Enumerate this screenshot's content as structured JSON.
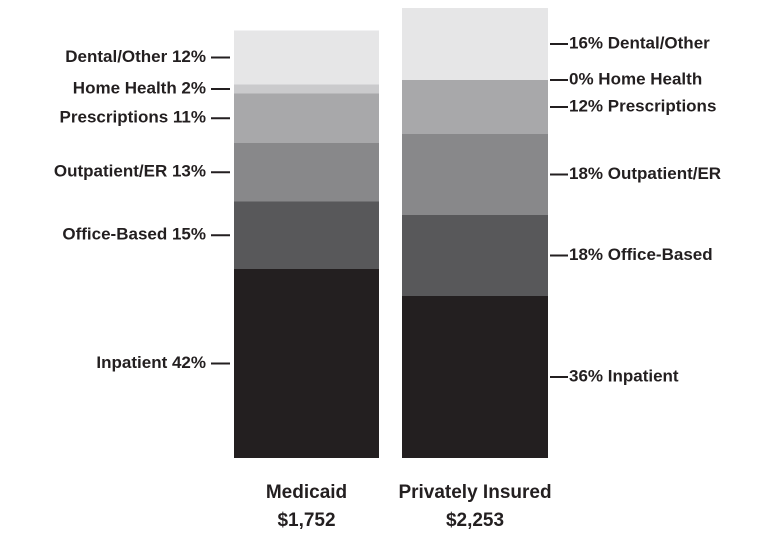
{
  "chart_data": {
    "type": "stacked-bar",
    "ylim": [
      0,
      100
    ],
    "bars": [
      {
        "category": "Medicaid",
        "total": "$1,752",
        "segments": [
          {
            "label": "Inpatient 42%",
            "value": 42,
            "color": "#231f20"
          },
          {
            "label": "Office-Based 15%",
            "value": 15,
            "color": "#58585a"
          },
          {
            "label": "Outpatient/ER 13%",
            "value": 13,
            "color": "#88888a"
          },
          {
            "label": "Prescriptions 11%",
            "value": 11,
            "color": "#a8a8aa"
          },
          {
            "label": "Home Health 2%",
            "value": 2,
            "color": "#cacacc"
          },
          {
            "label": "Dental/Other 12%",
            "value": 12,
            "color": "#e6e6e7"
          }
        ]
      },
      {
        "category": "Privately Insured",
        "total": "$2,253",
        "segments": [
          {
            "label": "36% Inpatient",
            "value": 36,
            "color": "#231f20"
          },
          {
            "label": "18% Office-Based",
            "value": 18,
            "color": "#58585a"
          },
          {
            "label": "18% Outpatient/ER",
            "value": 18,
            "color": "#88888a"
          },
          {
            "label": "12% Prescriptions",
            "value": 12,
            "color": "#a8a8aa"
          },
          {
            "label": "0% Home Health",
            "value": 0,
            "color": "#cacacc"
          },
          {
            "label": "16% Dental/Other",
            "value": 16,
            "color": "#e6e6e7"
          }
        ]
      }
    ]
  }
}
